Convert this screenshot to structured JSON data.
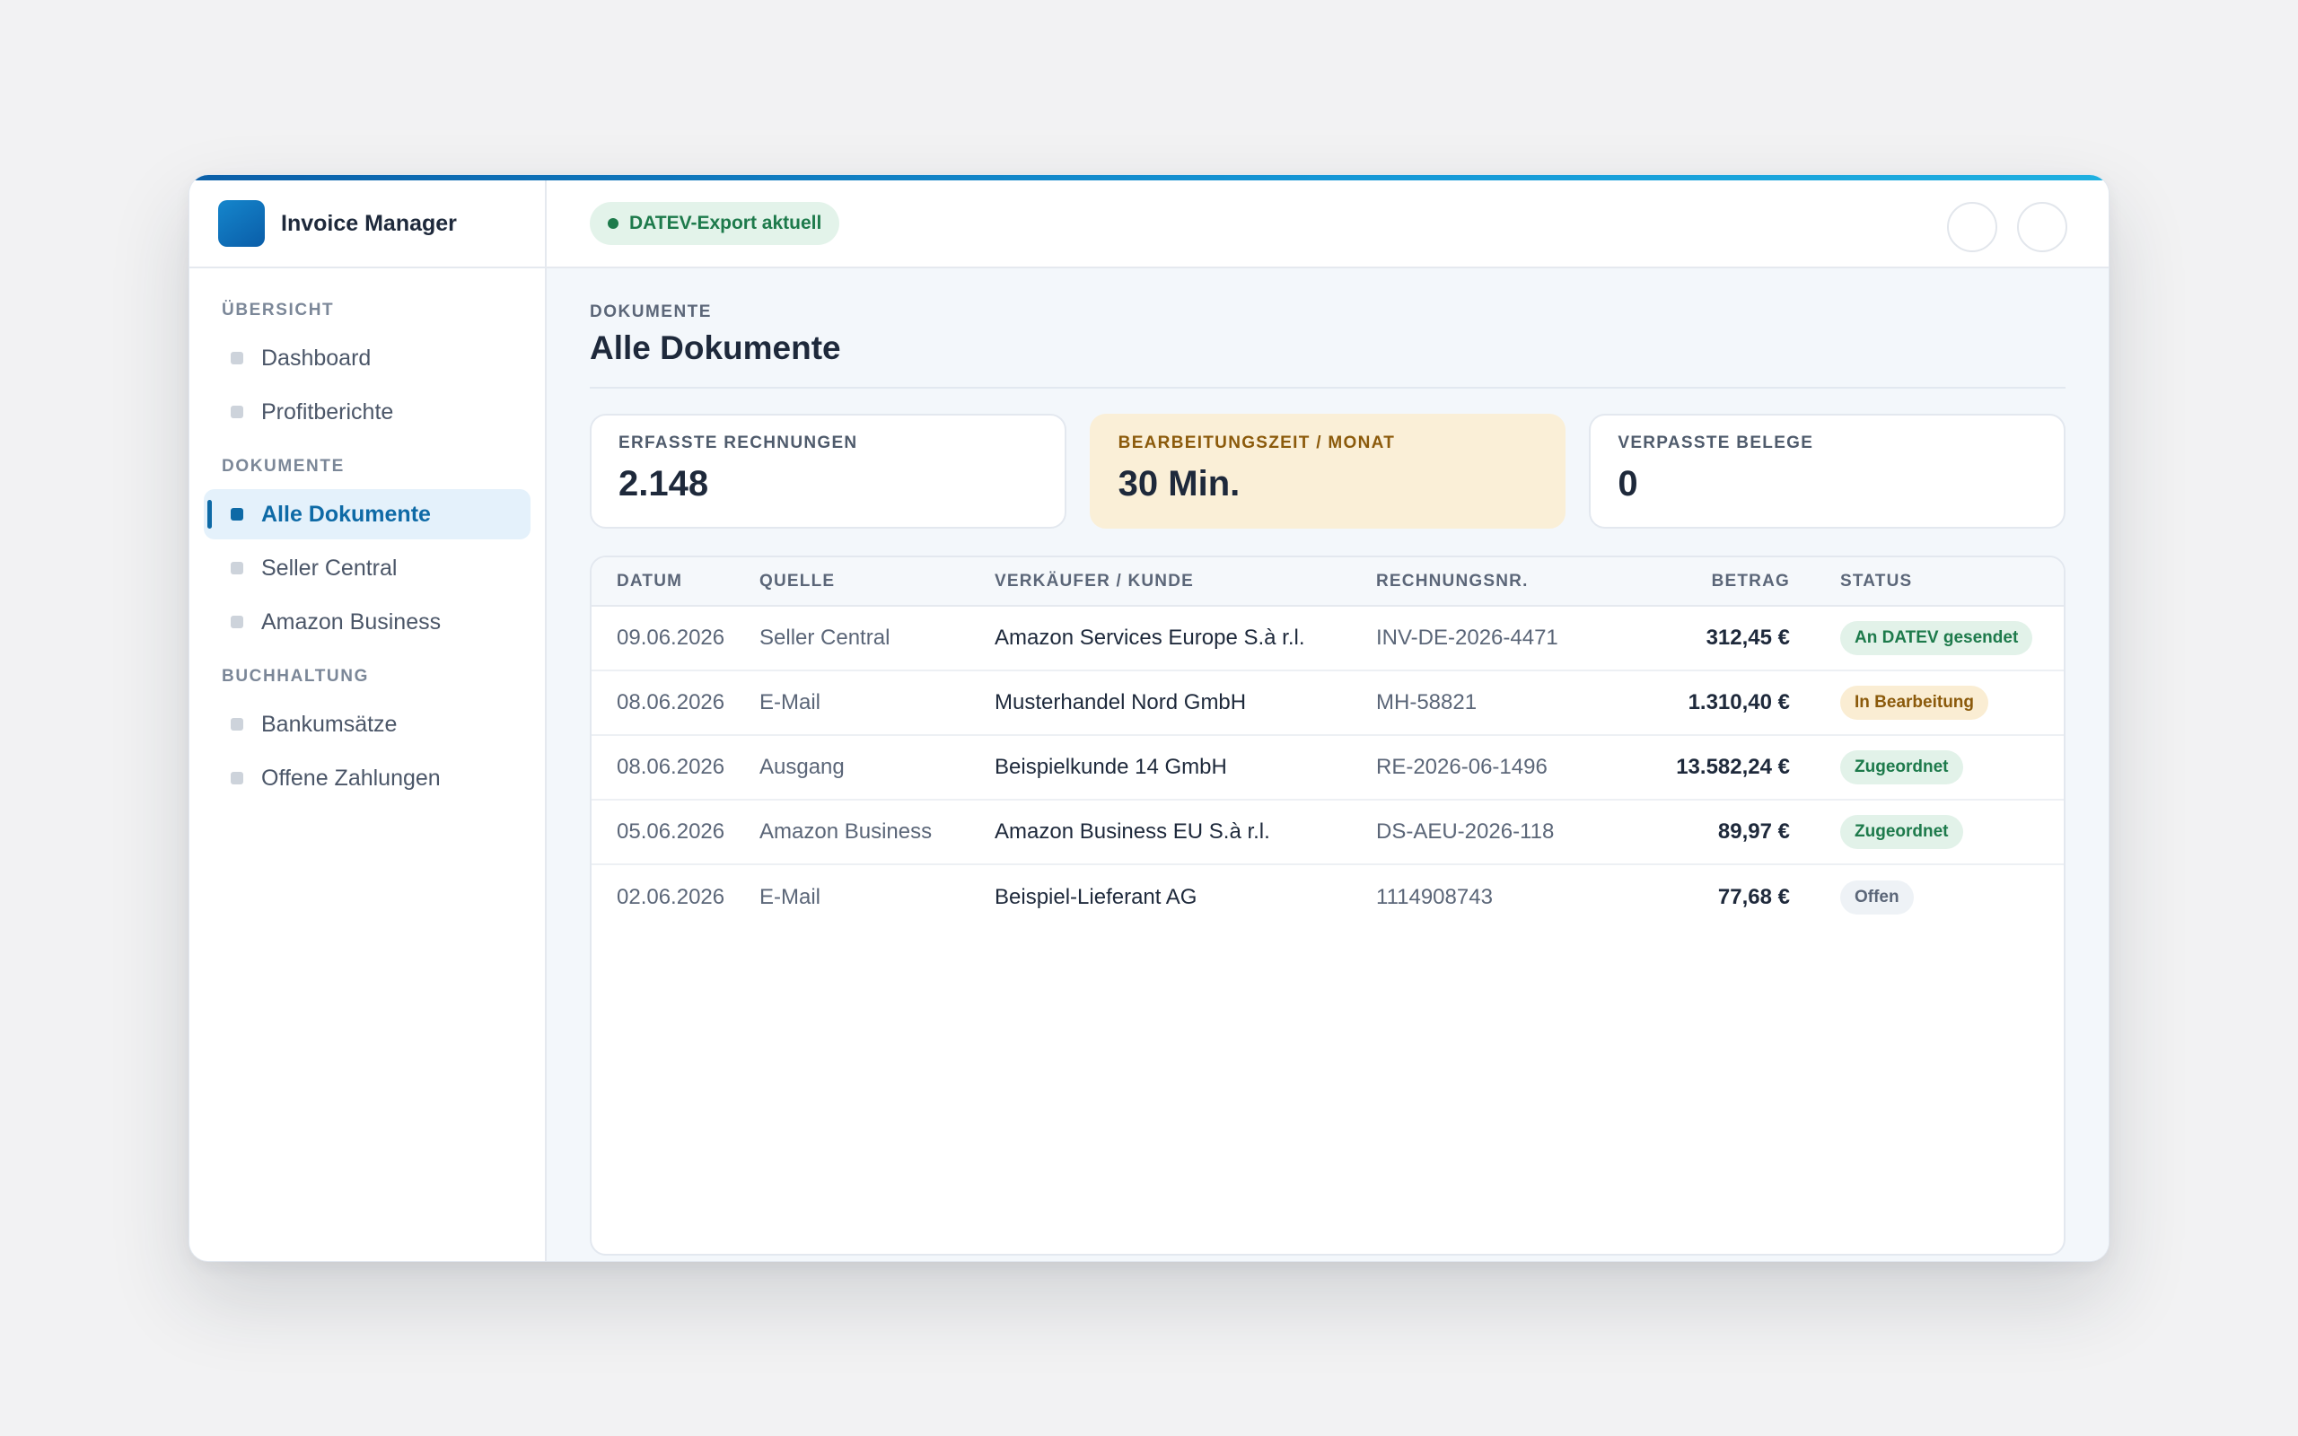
{
  "app": {
    "name": "Invoice Manager"
  },
  "header": {
    "status_label": "DATEV-Export aktuell"
  },
  "sidebar": {
    "sections": [
      {
        "title": "ÜBERSICHT",
        "items": [
          {
            "label": "Dashboard"
          },
          {
            "label": "Profitberichte"
          }
        ]
      },
      {
        "title": "DOKUMENTE",
        "items": [
          {
            "label": "Alle Dokumente",
            "active": true
          },
          {
            "label": "Seller Central"
          },
          {
            "label": "Amazon Business"
          }
        ]
      },
      {
        "title": "BUCHHALTUNG",
        "items": [
          {
            "label": "Bankumsätze"
          },
          {
            "label": "Offene Zahlungen"
          }
        ]
      }
    ]
  },
  "page": {
    "eyebrow": "DOKUMENTE",
    "title": "Alle Dokumente"
  },
  "kpis": [
    {
      "label": "ERFASSTE RECHNUNGEN",
      "value": "2.148"
    },
    {
      "label": "BEARBEITUNGSZEIT / MONAT",
      "value": "30 Min."
    },
    {
      "label": "VERPASSTE BELEGE",
      "value": "0"
    }
  ],
  "table": {
    "columns": [
      "DATUM",
      "QUELLE",
      "VERKÄUFER / KUNDE",
      "RECHNUNGSNR.",
      "BETRAG",
      "STATUS"
    ],
    "rows": [
      {
        "date": "09.06.2026",
        "source": "Seller Central",
        "vendor": "Amazon Services Europe S.à r.l.",
        "number": "INV-DE-2026-4471",
        "amount": "312,45 €",
        "status": "An DATEV gesendet"
      },
      {
        "date": "08.06.2026",
        "source": "E-Mail",
        "vendor": "Musterhandel Nord GmbH",
        "number": "MH-58821",
        "amount": "1.310,40 €",
        "status": "In Bearbeitung"
      },
      {
        "date": "08.06.2026",
        "source": "Ausgang",
        "vendor": "Beispielkunde 14 GmbH",
        "number": "RE-2026-06-1496",
        "amount": "13.582,24 €",
        "status": "Zugeordnet"
      },
      {
        "date": "05.06.2026",
        "source": "Amazon Business",
        "vendor": "Amazon Business EU S.à r.l.",
        "number": "DS-AEU-2026-118",
        "amount": "89,97 €",
        "status": "Zugeordnet"
      },
      {
        "date": "02.06.2026",
        "source": "E-Mail",
        "vendor": "Beispiel-Lieferant AG",
        "number": "1114908743",
        "amount": "77,68 €",
        "status": "Offen"
      }
    ]
  },
  "colors": {
    "accent": "#0e6aa6",
    "success": "#1d7a4b",
    "warning": "#8b5a0b",
    "highlight_bg": "#faefd7"
  }
}
